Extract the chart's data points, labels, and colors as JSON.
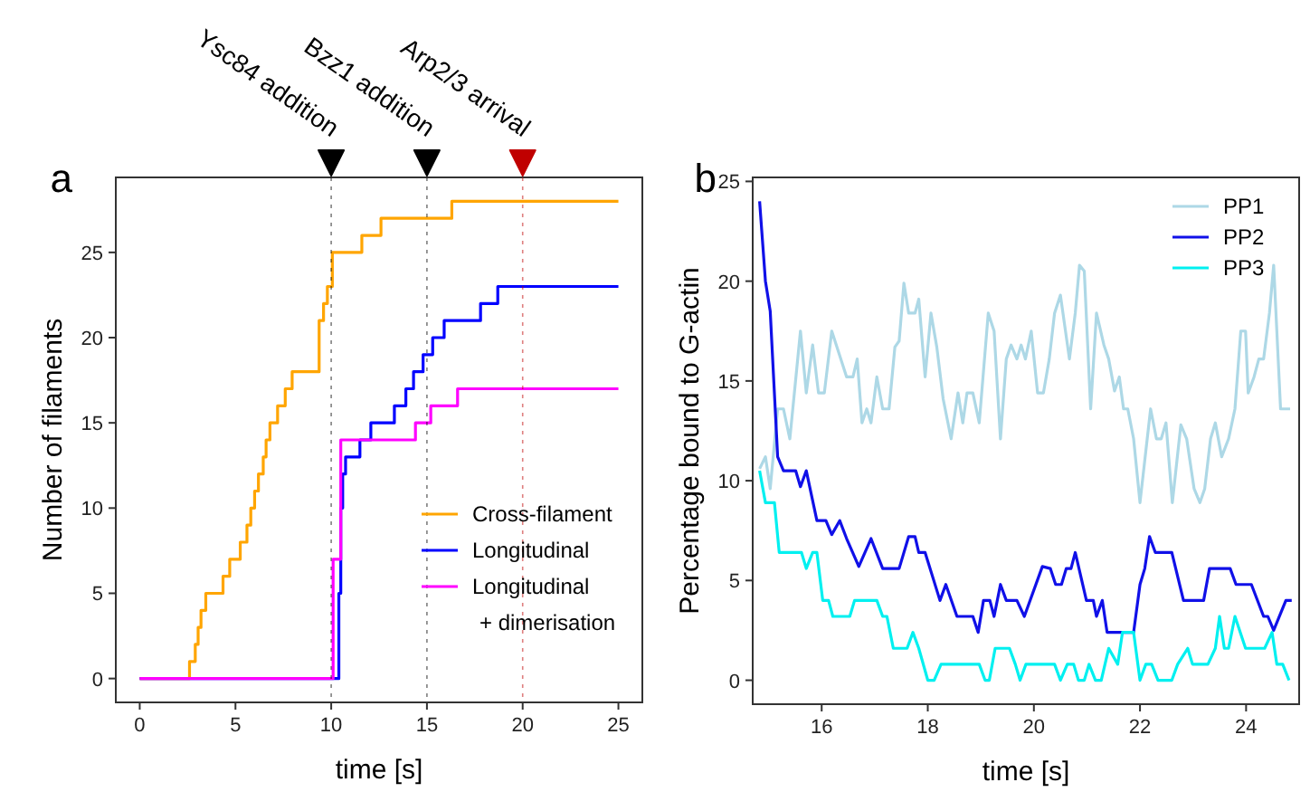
{
  "chart_data": [
    {
      "type": "step",
      "xlabel": "time [s]",
      "ylabel": "Number of filaments",
      "annotations": [
        "a"
      ],
      "xlim": [
        -1.25,
        26.25
      ],
      "ylim": [
        -1.4,
        29.4
      ],
      "xticks": [
        0,
        5,
        10,
        15,
        20,
        25
      ],
      "yticks": [
        0,
        5,
        10,
        15,
        20,
        25
      ],
      "legend": "bottom right",
      "ref_lines": [
        {
          "axis": "x",
          "value": 10,
          "label": "Ysc84 addition",
          "color": "#000000"
        },
        {
          "axis": "x",
          "value": 15,
          "label": "Bzz1 addition",
          "color": "#000000"
        },
        {
          "axis": "x",
          "value": 20,
          "label": "Arp2/3 arrival",
          "color": "#c00000"
        }
      ],
      "series": [
        {
          "name": "Cross-filament",
          "color": "#ffa500",
          "x": [
            0,
            2.6,
            2.9,
            3.05,
            3.2,
            3.45,
            4.35,
            4.7,
            5.25,
            5.6,
            5.8,
            6.0,
            6.2,
            6.45,
            6.6,
            6.8,
            7.2,
            7.6,
            7.96,
            9.37,
            9.6,
            9.8,
            10.06,
            11.6,
            12.6,
            16.3,
            25
          ],
          "values": [
            0,
            1,
            2,
            3,
            4,
            5,
            6,
            7,
            8,
            9,
            10,
            11,
            12,
            13,
            14,
            15,
            16,
            17,
            18,
            21,
            22,
            23,
            25,
            26,
            27,
            28,
            28
          ]
        },
        {
          "name": "Longitudinal",
          "color": "#0000ff",
          "x": [
            0,
            10.3,
            10.4,
            10.5,
            10.6,
            10.75,
            11.5,
            12.07,
            13.3,
            13.9,
            14.3,
            14.8,
            15.3,
            15.9,
            17.8,
            18.7,
            25
          ],
          "values": [
            0,
            0,
            5,
            10,
            12,
            13,
            14,
            15,
            16,
            17,
            18,
            19,
            20,
            21,
            22,
            23,
            23
          ]
        },
        {
          "name": "Longitudinal\n+ dimerisation",
          "color": "#ff00ff",
          "x": [
            0,
            9.8,
            10.1,
            10.5,
            14.4,
            15.2,
            16.6,
            25
          ],
          "values": [
            0,
            0,
            7,
            14,
            15,
            16,
            17,
            17
          ]
        }
      ]
    },
    {
      "type": "line",
      "xlabel": "time [s]",
      "ylabel": "Percentage bound to G-actin",
      "annotations": [
        "b"
      ],
      "xlim": [
        14.7,
        25.0
      ],
      "ylim": [
        -1.2,
        25.2
      ],
      "xticks": [
        16,
        18,
        20,
        22,
        24
      ],
      "yticks": [
        0,
        5,
        10,
        15,
        20,
        25
      ],
      "legend": "top right",
      "series": [
        {
          "name": "PP1",
          "color": "#add8e6",
          "x": [
            14.83,
            14.94,
            15.03,
            15.17,
            15.28,
            15.4,
            15.6,
            15.71,
            15.83,
            15.94,
            16.05,
            16.19,
            16.36,
            16.47,
            16.59,
            16.67,
            16.76,
            16.85,
            16.93,
            17.04,
            17.15,
            17.27,
            17.38,
            17.46,
            17.55,
            17.64,
            17.76,
            17.83,
            17.95,
            18.06,
            18.17,
            18.29,
            18.44,
            18.57,
            18.66,
            18.74,
            18.85,
            18.97,
            19.14,
            19.25,
            19.37,
            19.48,
            19.57,
            19.68,
            19.76,
            19.84,
            19.95,
            20.07,
            20.18,
            20.29,
            20.39,
            20.5,
            20.67,
            20.78,
            20.86,
            20.95,
            21.07,
            21.18,
            21.32,
            21.41,
            21.52,
            21.61,
            21.69,
            21.77,
            21.88,
            22.0,
            22.2,
            22.31,
            22.4,
            22.49,
            22.61,
            22.77,
            22.88,
            23.02,
            23.13,
            23.22,
            23.33,
            23.42,
            23.54,
            23.67,
            23.79,
            23.9,
            23.99,
            24.04,
            24.15,
            24.24,
            24.33,
            24.44,
            24.52,
            24.65,
            24.83
          ],
          "values": [
            10.6,
            11.2,
            9.6,
            13.6,
            13.6,
            12.1,
            17.5,
            14.4,
            16.8,
            14.4,
            14.4,
            17.5,
            16.1,
            15.2,
            15.2,
            16.1,
            12.9,
            13.6,
            12.9,
            15.2,
            13.6,
            13.6,
            16.7,
            17.0,
            19.9,
            18.4,
            18.4,
            19.1,
            15.2,
            18.4,
            16.7,
            14.1,
            12.1,
            14.4,
            12.9,
            14.4,
            14.4,
            12.9,
            18.4,
            17.5,
            12.1,
            16.1,
            16.8,
            16.1,
            16.8,
            16.1,
            17.5,
            14.4,
            14.4,
            16.1,
            18.4,
            19.3,
            16.1,
            18.4,
            20.8,
            20.5,
            13.6,
            18.4,
            16.8,
            16.1,
            14.5,
            15.2,
            13.6,
            13.6,
            12.1,
            8.9,
            13.6,
            12.1,
            12.1,
            12.9,
            8.9,
            12.8,
            12.1,
            9.6,
            8.9,
            9.6,
            12.1,
            12.9,
            11.2,
            12.1,
            13.6,
            17.5,
            17.5,
            14.4,
            15.2,
            16.1,
            16.1,
            18.4,
            20.8,
            13.6,
            13.6
          ]
        },
        {
          "name": "PP2",
          "color": "#1010e8",
          "x": [
            14.83,
            14.94,
            15.03,
            15.17,
            15.28,
            15.51,
            15.6,
            15.71,
            15.91,
            16.08,
            16.19,
            16.34,
            16.47,
            16.7,
            16.93,
            17.15,
            17.46,
            17.64,
            17.76,
            17.83,
            17.95,
            18.23,
            18.34,
            18.55,
            18.85,
            18.95,
            19.05,
            19.17,
            19.25,
            19.37,
            19.48,
            19.68,
            19.82,
            20.16,
            20.31,
            20.41,
            20.52,
            20.61,
            20.7,
            20.78,
            20.99,
            21.12,
            21.18,
            21.29,
            21.38,
            21.88,
            22.0,
            22.09,
            22.18,
            22.29,
            22.6,
            22.82,
            23.2,
            23.31,
            23.7,
            23.81,
            24.1,
            24.33,
            24.41,
            24.52,
            24.75,
            24.86
          ],
          "values": [
            24.0,
            20.0,
            18.5,
            11.2,
            10.5,
            10.5,
            9.7,
            10.5,
            8.0,
            8.0,
            7.3,
            8.0,
            7.1,
            5.7,
            7.1,
            5.6,
            5.6,
            7.2,
            7.2,
            6.4,
            6.4,
            4.0,
            4.8,
            3.2,
            3.2,
            2.4,
            4.0,
            4.0,
            3.2,
            4.8,
            4.0,
            4.0,
            3.2,
            5.7,
            5.6,
            4.8,
            4.8,
            5.6,
            5.6,
            6.4,
            4.0,
            4.0,
            3.2,
            4.0,
            2.4,
            2.4,
            4.8,
            5.6,
            7.2,
            6.4,
            6.4,
            4.0,
            4.0,
            5.6,
            5.6,
            4.8,
            4.8,
            3.2,
            3.2,
            2.5,
            4.0,
            4.0
          ]
        },
        {
          "name": "PP3",
          "color": "#00f0f0",
          "x": [
            14.83,
            14.94,
            15.11,
            15.2,
            15.62,
            15.71,
            15.83,
            15.91,
            16.02,
            16.13,
            16.21,
            16.53,
            16.62,
            17.04,
            17.15,
            17.23,
            17.35,
            17.61,
            17.72,
            17.83,
            18.0,
            18.12,
            18.25,
            18.97,
            19.08,
            19.16,
            19.27,
            19.54,
            19.65,
            19.74,
            19.85,
            20.39,
            20.5,
            20.63,
            20.75,
            20.84,
            20.95,
            21.04,
            21.16,
            21.27,
            21.41,
            21.58,
            21.67,
            21.88,
            22.0,
            22.11,
            22.22,
            22.34,
            22.6,
            22.71,
            22.9,
            22.99,
            23.28,
            23.42,
            23.5,
            23.59,
            23.67,
            23.79,
            23.99,
            24.35,
            24.49,
            24.58,
            24.69,
            24.81
          ],
          "values": [
            10.5,
            8.9,
            8.9,
            6.4,
            6.4,
            5.6,
            6.4,
            6.4,
            4.0,
            4.0,
            3.2,
            3.2,
            4.0,
            4.0,
            3.2,
            3.2,
            1.6,
            1.6,
            2.4,
            1.6,
            0.0,
            0.0,
            0.8,
            0.8,
            0.0,
            0.0,
            1.6,
            1.6,
            0.8,
            0.0,
            0.8,
            0.8,
            0.0,
            0.8,
            0.8,
            0.0,
            0.0,
            0.8,
            0.0,
            0.0,
            1.6,
            0.8,
            2.4,
            2.4,
            0.0,
            0.8,
            0.8,
            0.0,
            0.0,
            0.8,
            1.6,
            0.8,
            0.8,
            1.6,
            3.2,
            1.6,
            1.6,
            3.2,
            1.6,
            1.6,
            2.4,
            0.8,
            0.8,
            0.0
          ]
        }
      ]
    }
  ]
}
